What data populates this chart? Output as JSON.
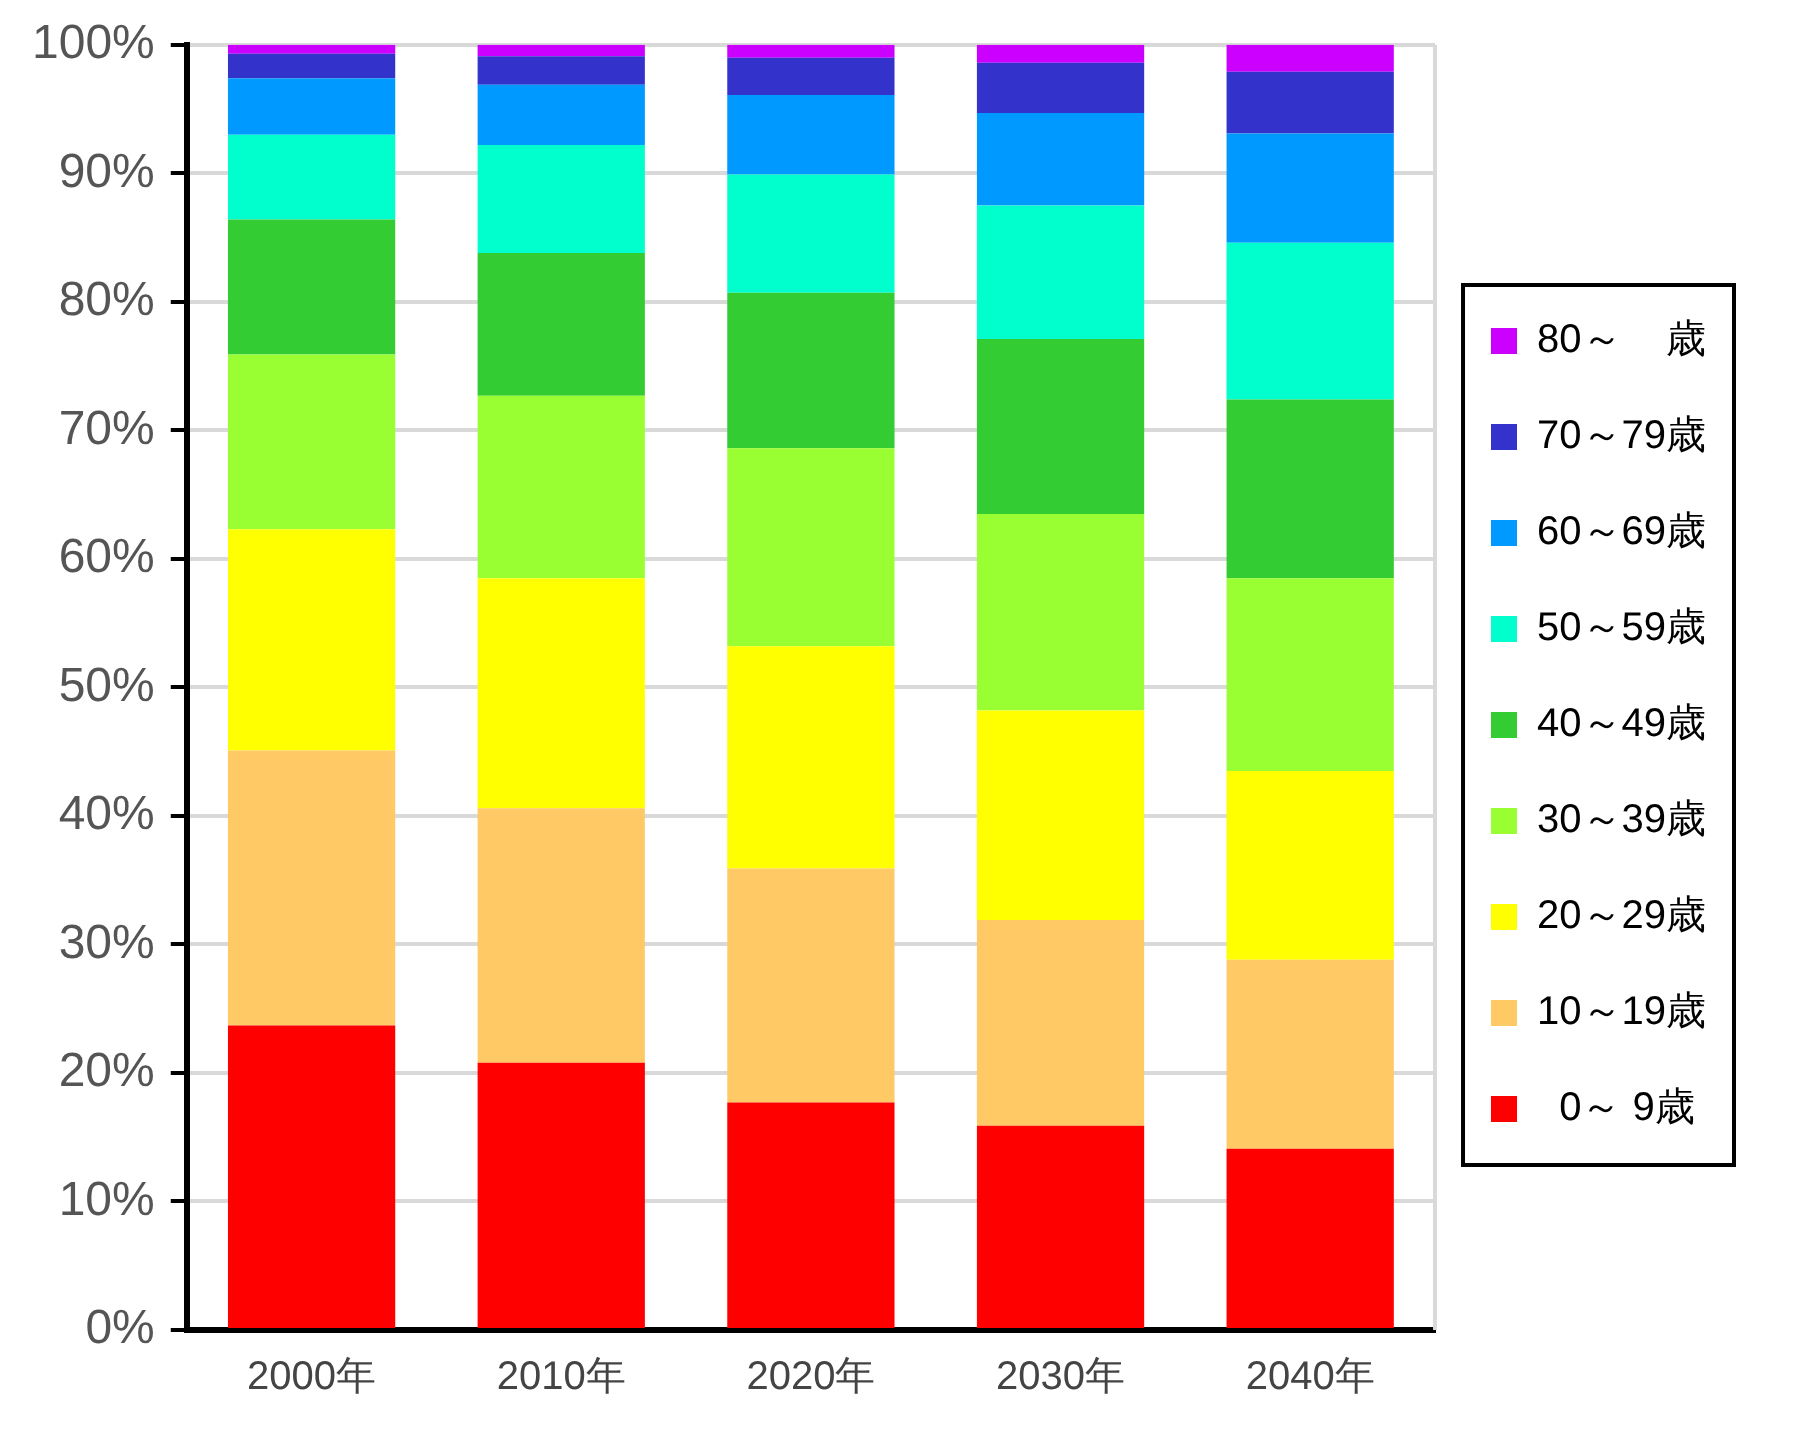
{
  "chart_data": {
    "type": "bar",
    "stacked": true,
    "categories": [
      "2000年",
      "2010年",
      "2020年",
      "2030年",
      "2040年"
    ],
    "series": [
      {
        "name": "  0～ 9歳",
        "color": "#ff0000",
        "values": [
          23.7,
          20.8,
          17.7,
          15.9,
          14.1
        ]
      },
      {
        "name": "10～19歳",
        "color": "#ffc966",
        "values": [
          21.4,
          19.8,
          18.2,
          16.0,
          14.7
        ]
      },
      {
        "name": "20～29歳",
        "color": "#ffff00",
        "values": [
          17.2,
          17.9,
          17.3,
          16.3,
          14.7
        ]
      },
      {
        "name": "30～39歳",
        "color": "#99ff33",
        "values": [
          13.6,
          14.2,
          15.4,
          15.3,
          15.0
        ]
      },
      {
        "name": "40～49歳",
        "color": "#33cc33",
        "values": [
          10.5,
          11.1,
          12.1,
          13.6,
          13.9
        ]
      },
      {
        "name": "50～59歳",
        "color": "#00ffcc",
        "values": [
          6.6,
          8.4,
          9.2,
          10.4,
          12.2
        ]
      },
      {
        "name": "60～69歳",
        "color": "#0099ff",
        "values": [
          4.4,
          4.7,
          6.2,
          7.2,
          8.5
        ]
      },
      {
        "name": "70～79歳",
        "color": "#3333cc",
        "values": [
          1.9,
          2.2,
          2.9,
          3.9,
          4.8
        ]
      },
      {
        "name": "80～    歳",
        "color": "#cc00ff",
        "values": [
          0.7,
          0.9,
          1.0,
          1.4,
          2.1
        ]
      }
    ],
    "ylim": [
      0,
      100
    ],
    "yticks": [
      {
        "value": 0,
        "label": "0%"
      },
      {
        "value": 10,
        "label": "10%"
      },
      {
        "value": 20,
        "label": "20%"
      },
      {
        "value": 30,
        "label": "30%"
      },
      {
        "value": 40,
        "label": "40%"
      },
      {
        "value": 50,
        "label": "50%"
      },
      {
        "value": 60,
        "label": "60%"
      },
      {
        "value": 70,
        "label": "70%"
      },
      {
        "value": 80,
        "label": "80%"
      },
      {
        "value": 90,
        "label": "90%"
      },
      {
        "value": 100,
        "label": "100%"
      }
    ],
    "grid": "y",
    "legend": "right"
  }
}
